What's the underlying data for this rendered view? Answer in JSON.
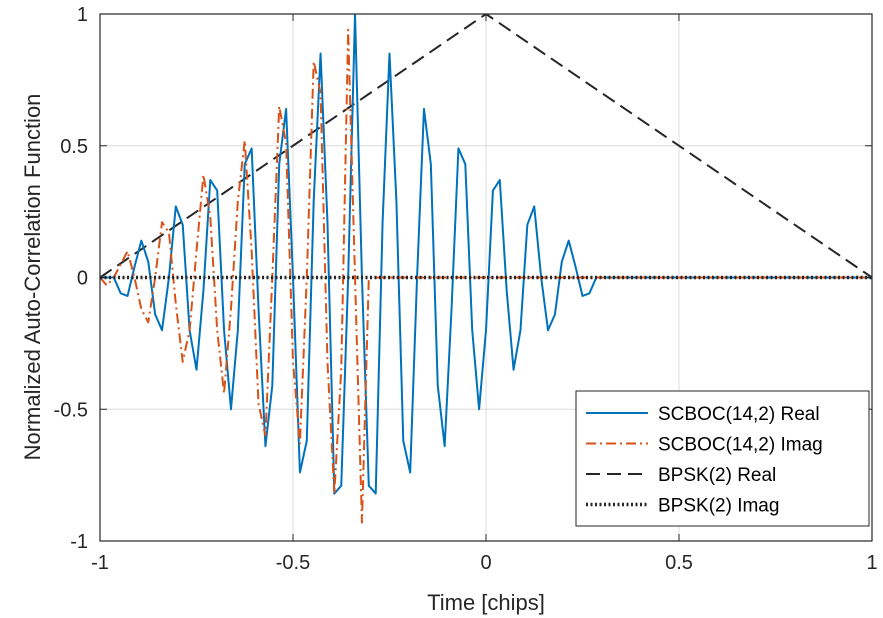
{
  "chart_data": {
    "type": "line",
    "xlabel": "Time [chips]",
    "ylabel": "Normalized Auto-Correlation Function",
    "xlim": [
      -1,
      1
    ],
    "ylim": [
      -1,
      1
    ],
    "xticks": [
      -1,
      -0.5,
      0,
      0.5,
      1
    ],
    "xtick_labels": [
      "-1",
      "-0.5",
      "0",
      "0.5",
      "1"
    ],
    "yticks": [
      -1,
      -0.5,
      0,
      0.5,
      1
    ],
    "ytick_labels": [
      "-1",
      "-0.5",
      "0",
      "0.5",
      "1"
    ],
    "grid": true,
    "legend_position": "bottom-right",
    "series": [
      {
        "name": "SCBOC(14,2) Real",
        "color": "#0072BD",
        "style": "solid",
        "x": [
          -1.0,
          -0.9821,
          -0.9643,
          -0.9464,
          -0.9286,
          -0.9107,
          -0.8929,
          -0.875,
          -0.8571,
          -0.8393,
          -0.8214,
          -0.8036,
          -0.7857,
          -0.7679,
          -0.75,
          -0.7321,
          -0.7143,
          -0.6964,
          -0.6786,
          -0.6607,
          -0.6429,
          -0.625,
          -0.6071,
          -0.5893,
          -0.5714,
          -0.5536,
          -0.5357,
          -0.5179,
          -0.5,
          -0.4821,
          -0.4643,
          -0.4464,
          -0.4286,
          -0.4107,
          -0.3929,
          -0.375,
          -0.3571,
          -0.3393,
          -0.3214,
          -0.3036,
          -0.2857,
          -0.2679,
          -0.25,
          -0.2321,
          -0.2143,
          -0.1964,
          -0.1786,
          -0.1607,
          -0.1429,
          -0.125,
          -0.1071,
          -0.0893,
          -0.0714,
          -0.0536,
          -0.0357,
          -0.0179,
          0.0,
          0.0179,
          0.0357,
          0.0536,
          0.0714,
          0.0893,
          0.1071,
          0.125,
          0.1429,
          0.1607,
          0.1786,
          0.1964,
          0.2143,
          0.2321,
          0.25,
          0.2679,
          0.2857,
          0.3036,
          0.3214,
          0.3393,
          0.3571,
          0.375,
          0.3929,
          0.4107,
          0.4286,
          0.4464,
          0.4643,
          0.4821,
          0.5,
          0.5179,
          0.5357,
          0.5536,
          0.5714,
          0.5893,
          0.6071,
          0.625,
          0.6429,
          0.6607,
          0.6786,
          0.6964,
          0.7143,
          0.7321,
          0.75,
          0.7679,
          0.7857,
          0.8036,
          0.8214,
          0.8393,
          0.8571,
          0.875,
          0.8929,
          0.9107,
          0.9286,
          0.9464,
          0.9643,
          0.9821,
          1.0
        ],
        "y": [
          0.0,
          0.0,
          0.0,
          -0.06,
          -0.07,
          0.04,
          0.14,
          0.06,
          -0.14,
          -0.2,
          0.0,
          0.27,
          0.2,
          -0.2,
          -0.35,
          -0.05,
          0.37,
          0.33,
          -0.2,
          -0.5,
          -0.2,
          0.43,
          0.49,
          -0.12,
          -0.64,
          -0.41,
          0.43,
          0.64,
          0.0,
          -0.74,
          -0.62,
          0.29,
          0.85,
          0.21,
          -0.82,
          -0.79,
          0.0,
          1.0,
          0.0,
          -0.79,
          -0.82,
          0.21,
          0.85,
          0.29,
          -0.62,
          -0.74,
          0.0,
          0.64,
          0.43,
          -0.41,
          -0.64,
          -0.12,
          0.49,
          0.43,
          -0.2,
          -0.5,
          -0.2,
          0.33,
          0.37,
          -0.05,
          -0.35,
          -0.2,
          0.2,
          0.27,
          0.0,
          -0.2,
          -0.14,
          0.06,
          0.14,
          0.04,
          -0.07,
          -0.06,
          0.0,
          0.0,
          0.0,
          0.0,
          0.0,
          0.0,
          0.0,
          0.0,
          0.0,
          0.0,
          0.0,
          0.0,
          0.0,
          0.0,
          0.0,
          0.0,
          0.0,
          0.0,
          0.0,
          0.0,
          0.0,
          0.0,
          0.0,
          0.0,
          0.0,
          0.0,
          0.0,
          0.0,
          0.0,
          0.0,
          0.0,
          0.0,
          0.0,
          0.0,
          0.0,
          0.0,
          0.0,
          0.0,
          0.0,
          0.0,
          0.0
        ]
      },
      {
        "name": "SCBOC(14,2) Imag",
        "color": "#D95319",
        "style": "dashdot",
        "x": [
          -1.0,
          -0.9821,
          -0.9643,
          -0.9464,
          -0.9286,
          -0.9107,
          -0.8929,
          -0.875,
          -0.8571,
          -0.8393,
          -0.8214,
          -0.8036,
          -0.7857,
          -0.7679,
          -0.75,
          -0.7321,
          -0.7143,
          -0.6964,
          -0.6786,
          -0.6607,
          -0.6429,
          -0.625,
          -0.6071,
          -0.5893,
          -0.5714,
          -0.5536,
          -0.5357,
          -0.5179,
          -0.5,
          -0.4821,
          -0.4643,
          -0.4464,
          -0.4286,
          -0.4107,
          -0.3929,
          -0.375,
          -0.3571,
          -0.3393,
          -0.3214,
          -0.3036,
          -0.2857,
          -0.2679,
          -0.25,
          -0.2321,
          -0.2143,
          -0.1964,
          -0.1786,
          -0.1607,
          -0.1429,
          -0.125,
          -0.1071,
          -0.0893,
          -0.0714,
          -0.0536,
          -0.0357,
          -0.0179,
          0.0,
          0.0179,
          0.0357,
          0.0536,
          0.0714,
          0.0893,
          0.1071,
          0.125,
          0.1429,
          0.1607,
          0.1786,
          0.1964,
          0.2143,
          0.2321,
          0.25,
          0.2679,
          0.2857,
          0.3036,
          0.3214,
          0.3393,
          0.3571,
          0.375,
          0.3929,
          0.4107,
          0.4286,
          0.4464,
          0.4643,
          0.4821,
          0.5,
          0.5179,
          0.5357,
          0.5536,
          0.5714,
          0.5893,
          0.6071,
          0.625,
          0.6429,
          0.6607,
          0.6786,
          0.6964,
          0.7143,
          0.7321,
          0.75,
          0.7679,
          0.7857,
          0.8036,
          0.8214,
          0.8393,
          0.8571,
          0.875,
          0.8929,
          0.9107,
          0.9286,
          0.9464,
          0.9643,
          0.9821,
          1.0
        ],
        "y": [
          0.0,
          -0.03,
          0.0,
          0.05,
          0.1,
          0.0,
          -0.12,
          -0.17,
          0.0,
          0.21,
          0.17,
          -0.1,
          -0.32,
          -0.2,
          0.1,
          0.39,
          0.23,
          -0.2,
          -0.44,
          -0.12,
          0.29,
          0.52,
          0.1,
          -0.48,
          -0.6,
          0.0,
          0.65,
          0.51,
          -0.32,
          -0.63,
          0.0,
          0.82,
          0.7,
          -0.32,
          -0.82,
          -0.35,
          0.94,
          0.0,
          -0.93,
          0.0,
          0.0,
          0.0,
          0.0,
          0.0,
          0.0,
          0.0,
          0.0,
          0.0,
          0.0,
          0.0,
          0.0,
          0.0,
          0.0,
          0.0,
          0.0,
          0.0,
          0.0,
          0.0,
          0.0,
          0.0,
          0.0,
          0.0,
          0.0,
          0.0,
          0.0,
          0.0,
          0.0,
          0.0,
          0.0,
          0.0,
          0.0,
          0.0,
          0.0,
          0.0,
          0.0,
          0.0,
          0.0,
          0.0,
          0.0,
          0.0,
          0.0,
          0.0,
          0.0,
          0.0,
          0.0,
          0.0,
          0.0,
          0.0,
          0.0,
          0.0,
          0.0,
          0.0,
          0.0,
          0.0,
          0.0,
          0.0,
          0.0,
          0.0,
          0.0,
          0.0,
          0.0,
          0.0,
          0.0,
          0.0,
          0.0,
          0.0,
          0.0,
          0.0,
          0.0,
          0.0,
          0.0,
          0.0,
          0.0
        ]
      },
      {
        "name": "BPSK(2) Real",
        "color": "#262626",
        "style": "dashed",
        "x": [
          -1,
          0,
          1
        ],
        "y": [
          0,
          1,
          0
        ]
      },
      {
        "name": "BPSK(2) Imag",
        "color": "#262626",
        "style": "dotted",
        "x": [
          -1,
          1
        ],
        "y": [
          0,
          0
        ]
      }
    ]
  }
}
